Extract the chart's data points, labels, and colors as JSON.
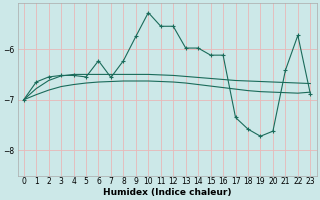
{
  "xlabel": "Humidex (Indice chaleur)",
  "bg_color": "#cce8e8",
  "line_color": "#1a6b5a",
  "grid_color": "#e8b8b8",
  "xlim": [
    -0.5,
    23.5
  ],
  "ylim": [
    -8.5,
    -5.1
  ],
  "yticks": [
    -8,
    -7,
    -6
  ],
  "xticks": [
    0,
    1,
    2,
    3,
    4,
    5,
    6,
    7,
    8,
    9,
    10,
    11,
    12,
    13,
    14,
    15,
    16,
    17,
    18,
    19,
    20,
    21,
    22,
    23
  ],
  "series": [
    {
      "x": [
        0,
        1,
        2,
        3,
        4,
        5,
        6,
        7,
        8,
        9,
        10,
        11,
        12,
        13,
        14,
        15,
        16,
        17,
        18,
        19,
        20,
        21,
        22,
        23
      ],
      "y": [
        -7.0,
        -6.78,
        -6.62,
        -6.53,
        -6.5,
        -6.5,
        -6.5,
        -6.5,
        -6.5,
        -6.5,
        -6.5,
        -6.51,
        -6.52,
        -6.54,
        -6.56,
        -6.58,
        -6.6,
        -6.62,
        -6.63,
        -6.64,
        -6.65,
        -6.66,
        -6.67,
        -6.68
      ],
      "has_markers": false,
      "linestyle": "-"
    },
    {
      "x": [
        0,
        1,
        2,
        3,
        4,
        5,
        6,
        7,
        8,
        9,
        10,
        11,
        12,
        13,
        14,
        15,
        16,
        17,
        18,
        19,
        20,
        21,
        22,
        23
      ],
      "y": [
        -7.0,
        -6.9,
        -6.81,
        -6.74,
        -6.7,
        -6.67,
        -6.65,
        -6.64,
        -6.63,
        -6.63,
        -6.63,
        -6.64,
        -6.65,
        -6.67,
        -6.7,
        -6.73,
        -6.76,
        -6.79,
        -6.82,
        -6.84,
        -6.85,
        -6.86,
        -6.87,
        -6.85
      ],
      "has_markers": false,
      "linestyle": "-"
    },
    {
      "x": [
        0,
        1,
        2,
        3,
        4,
        5,
        6,
        7,
        8,
        9,
        10,
        11,
        12,
        13,
        14,
        15,
        16,
        17,
        18,
        19,
        20,
        21,
        22,
        23
      ],
      "y": [
        -7.0,
        -6.65,
        -6.55,
        -6.52,
        -6.52,
        -6.55,
        -6.23,
        -6.56,
        -6.23,
        -5.75,
        -5.28,
        -5.55,
        -5.55,
        -5.98,
        -5.98,
        -6.12,
        -6.12,
        -7.35,
        -7.58,
        -7.72,
        -7.62,
        -6.42,
        -5.73,
        -6.88
      ],
      "has_markers": true,
      "linestyle": "-"
    }
  ]
}
